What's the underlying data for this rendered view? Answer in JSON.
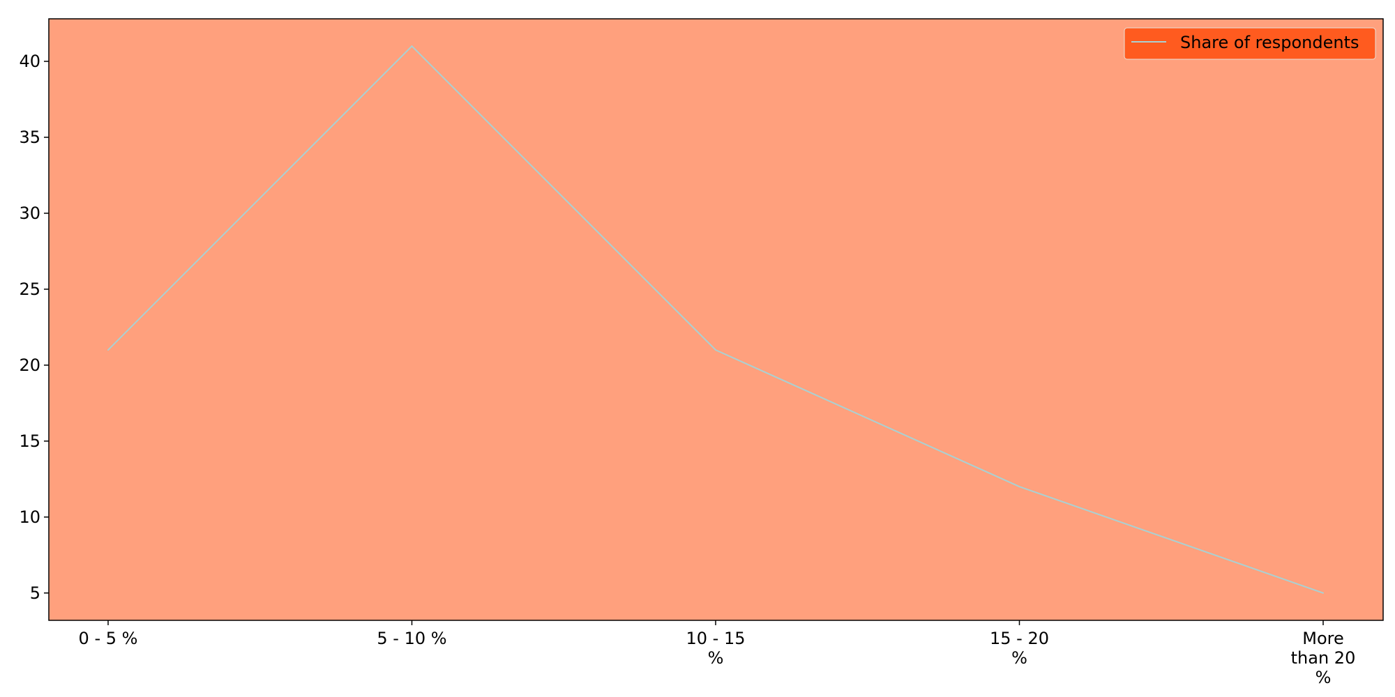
{
  "chart_data": {
    "type": "line",
    "categories": [
      "0 - 5 %",
      "5 - 10 %",
      "10 - 15 %",
      "15 - 20 %",
      "More than 20 %"
    ],
    "category_label_lines": [
      [
        "0 - 5 %"
      ],
      [
        "5 - 10 %"
      ],
      [
        "10 - 15",
        "%"
      ],
      [
        "15 - 20",
        "%"
      ],
      [
        "More",
        "than 20",
        "%"
      ]
    ],
    "series": [
      {
        "name": "Share of respondents",
        "values": [
          21,
          41,
          21,
          12,
          5
        ]
      }
    ],
    "title": "",
    "xlabel": "",
    "ylabel": "",
    "yticks": [
      5,
      10,
      15,
      20,
      25,
      30,
      35,
      40
    ],
    "ylim": [
      3.2,
      42.8
    ],
    "grid": false,
    "legend_position": "top-right",
    "colors": {
      "plot_background": "#FFA07D",
      "line": "#A9D1D3",
      "legend_background": "#FF5B1F",
      "axis": "#000000"
    }
  }
}
